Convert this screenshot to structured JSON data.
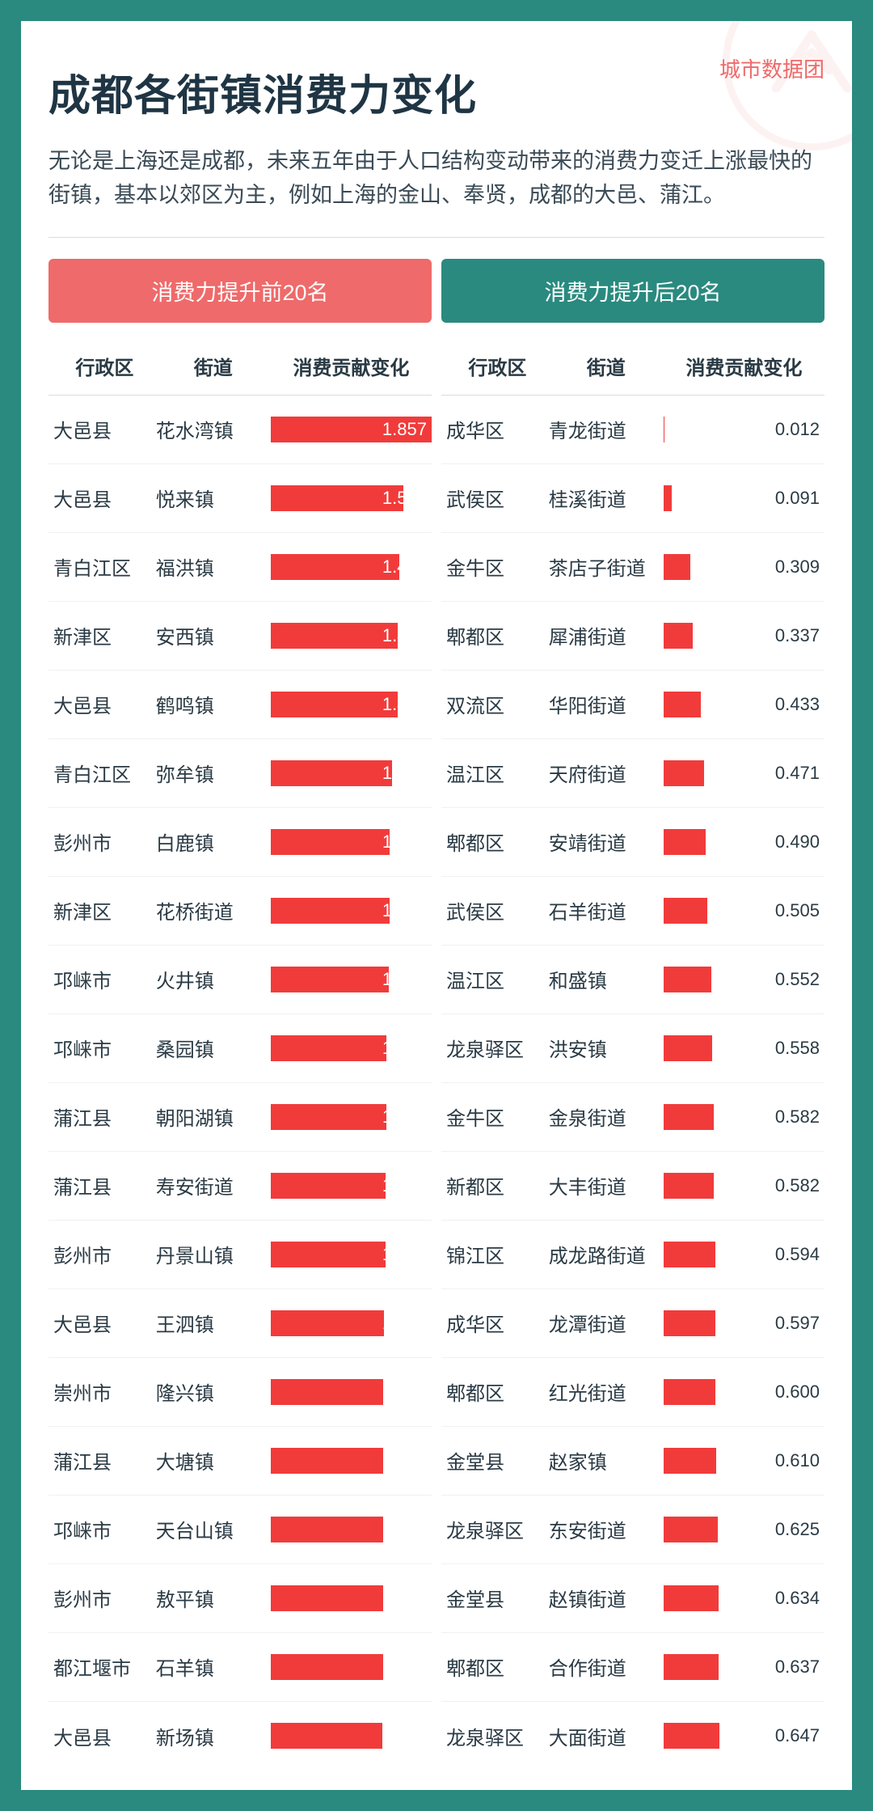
{
  "brand": "城市数据团",
  "title": "成都各街镇消费力变化",
  "subtitle": "无论是上海还是成都，未来五年由于人口结构变动带来的消费力变迁上涨最快的街镇，基本以郊区为主，例如上海的金山、奉贤，成都的大邑、蒲江。",
  "tabs": {
    "top": "消费力提升前20名",
    "bottom": "消费力提升后20名"
  },
  "columns": [
    "行政区",
    "街道",
    "消费贡献变化"
  ],
  "chart": {
    "type": "bar-table",
    "bar_color": "#f13b3b",
    "max_value": 1.857,
    "background_color": "#ffffff",
    "border_color": "#d7dde1",
    "row_border_color": "#eef1f3",
    "label_inside_color": "#ffffff",
    "label_outside_color": "#2a3a44",
    "label_outside_threshold": 0.9,
    "font_size_cell": 24,
    "font_size_value": 22,
    "decimals": 3
  },
  "colors": {
    "page_bg": "#2a8a7f",
    "tab_top": "#ef6a6a",
    "tab_bottom": "#2a8a7f",
    "brand": "#ef6a6a",
    "title": "#1f3544",
    "text": "#2a3a44"
  },
  "top20": [
    {
      "district": "大邑县",
      "town": "花水湾镇",
      "value": 1.857
    },
    {
      "district": "大邑县",
      "town": "悦来镇",
      "value": 1.532
    },
    {
      "district": "青白江区",
      "town": "福洪镇",
      "value": 1.48
    },
    {
      "district": "新津区",
      "town": "安西镇",
      "value": 1.468
    },
    {
      "district": "大邑县",
      "town": "鹤鸣镇",
      "value": 1.462
    },
    {
      "district": "青白江区",
      "town": "弥牟镇",
      "value": 1.402
    },
    {
      "district": "彭州市",
      "town": "白鹿镇",
      "value": 1.373
    },
    {
      "district": "新津区",
      "town": "花桥街道",
      "value": 1.368
    },
    {
      "district": "邛崃市",
      "town": "火井镇",
      "value": 1.366
    },
    {
      "district": "邛崃市",
      "town": "桑园镇",
      "value": 1.336
    },
    {
      "district": "蒲江县",
      "town": "朝阳湖镇",
      "value": 1.331
    },
    {
      "district": "蒲江县",
      "town": "寿安街道",
      "value": 1.327
    },
    {
      "district": "彭州市",
      "town": "丹景山镇",
      "value": 1.324
    },
    {
      "district": "大邑县",
      "town": "王泗镇",
      "value": 1.305
    },
    {
      "district": "崇州市",
      "town": "隆兴镇",
      "value": 1.297
    },
    {
      "district": "蒲江县",
      "town": "大塘镇",
      "value": 1.296
    },
    {
      "district": "邛崃市",
      "town": "天台山镇",
      "value": 1.296
    },
    {
      "district": "彭州市",
      "town": "敖平镇",
      "value": 1.295
    },
    {
      "district": "都江堰市",
      "town": "石羊镇",
      "value": 1.294
    },
    {
      "district": "大邑县",
      "town": "新场镇",
      "value": 1.29
    }
  ],
  "bottom20": [
    {
      "district": "成华区",
      "town": "青龙街道",
      "value": 0.012
    },
    {
      "district": "武侯区",
      "town": "桂溪街道",
      "value": 0.091
    },
    {
      "district": "金牛区",
      "town": "茶店子街道",
      "value": 0.309
    },
    {
      "district": "郫都区",
      "town": "犀浦街道",
      "value": 0.337
    },
    {
      "district": "双流区",
      "town": "华阳街道",
      "value": 0.433
    },
    {
      "district": "温江区",
      "town": "天府街道",
      "value": 0.471
    },
    {
      "district": "郫都区",
      "town": "安靖街道",
      "value": 0.49
    },
    {
      "district": "武侯区",
      "town": "石羊街道",
      "value": 0.505
    },
    {
      "district": "温江区",
      "town": "和盛镇",
      "value": 0.552
    },
    {
      "district": "龙泉驿区",
      "town": "洪安镇",
      "value": 0.558
    },
    {
      "district": "金牛区",
      "town": "金泉街道",
      "value": 0.582
    },
    {
      "district": "新都区",
      "town": "大丰街道",
      "value": 0.582
    },
    {
      "district": "锦江区",
      "town": "成龙路街道",
      "value": 0.594
    },
    {
      "district": "成华区",
      "town": "龙潭街道",
      "value": 0.597
    },
    {
      "district": "郫都区",
      "town": "红光街道",
      "value": 0.6
    },
    {
      "district": "金堂县",
      "town": "赵家镇",
      "value": 0.61
    },
    {
      "district": "龙泉驿区",
      "town": "东安街道",
      "value": 0.625
    },
    {
      "district": "金堂县",
      "town": "赵镇街道",
      "value": 0.634
    },
    {
      "district": "郫都区",
      "town": "合作街道",
      "value": 0.637
    },
    {
      "district": "龙泉驿区",
      "town": "大面街道",
      "value": 0.647
    }
  ]
}
